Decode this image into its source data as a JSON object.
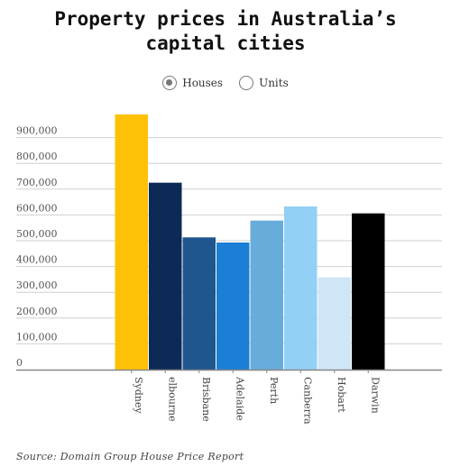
{
  "title_line1": "Property prices in Australia’s",
  "title_line2": "capital cities",
  "legend": {
    "houses_label": "Houses",
    "units_label": "Units",
    "selected": "Houses"
  },
  "source": "Source: Domain Group House Price Report",
  "colors": [
    "#FFC107",
    "#0D2A57",
    "#1F568E",
    "#1B7FD6",
    "#67ADDC",
    "#92D0F5",
    "#CFE6F7",
    "#000000"
  ],
  "chart_data": {
    "type": "bar",
    "title": "Property prices in Australia’s capital cities",
    "categories": [
      "Sydney",
      "elbourne",
      "Brisbane",
      "Adelaide",
      "Perth",
      "Canberra",
      "Hobart",
      "Darwin"
    ],
    "series": [
      {
        "name": "Houses",
        "values": [
          990000,
          725000,
          513000,
          493000,
          578000,
          633000,
          358000,
          606000
        ]
      }
    ],
    "ylim": [
      0,
      1000000
    ],
    "yticks": [
      0,
      100000,
      200000,
      300000,
      400000,
      500000,
      600000,
      700000,
      800000,
      900000
    ],
    "ytick_labels": [
      "0",
      "100,000",
      "200,000",
      "300,000",
      "400,000",
      "500,000",
      "600,000",
      "700,000",
      "800,000",
      "900,000"
    ],
    "grid": true,
    "xlabel": "",
    "ylabel": ""
  }
}
